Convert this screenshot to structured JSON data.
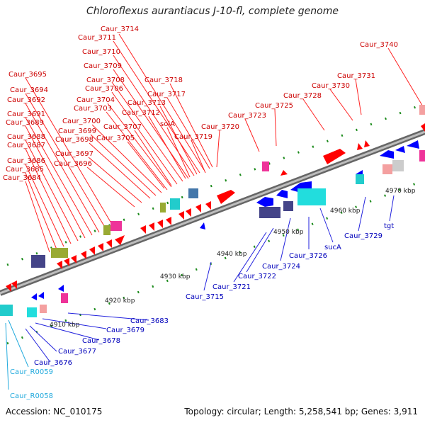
{
  "title": "Chloroflexus aurantiacus J-10-fl, complete genome",
  "footer": {
    "accession": "Accession: NC_010175",
    "topology": "Topology: circular; Length: 5,258,541 bp; Genes: 3,911"
  },
  "colors": {
    "forward_gene": "#ff0000",
    "reverse_gene": "#0000ff",
    "top_label": "#cc0000",
    "bottom_label": "#0000bb",
    "rna_label": "#22aadd",
    "backbone": "#888888"
  },
  "kbp_labels": [
    "4910 kbp",
    "4920 kbp",
    "4930 kbp",
    "4940 kbp",
    "4950 kbp",
    "4960 kbp",
    "4970 kbp"
  ],
  "top_labels": [
    "Caur_3714",
    "Caur_3711",
    "Caur_3710",
    "Caur_3709",
    "Caur_3708",
    "Caur_3706",
    "Caur_3704",
    "Caur_3703",
    "Caur_3700",
    "Caur_3699",
    "Caur_3698",
    "Caur_3697",
    "Caur_3696",
    "Caur_3695",
    "Caur_3694",
    "Caur_3692",
    "Caur_3691",
    "Caur_3689",
    "Caur_3688",
    "Caur_3687",
    "Caur_3686",
    "Caur_3685",
    "Caur_3684",
    "Caur_3718",
    "Caur_3717",
    "Caur_3713",
    "Caur_3712",
    "Caur_3707",
    "Caur_3705",
    "solA",
    "Caur_3719",
    "Caur_3720",
    "Caur_3723",
    "Caur_3725",
    "Caur_3728",
    "Caur_3730",
    "Caur_3731",
    "Caur_3740"
  ],
  "bottom_labels": [
    "Caur_3683",
    "Caur_3679",
    "Caur_3678",
    "Caur_3677",
    "Caur_3676",
    "Caur_3715",
    "Caur_3721",
    "Caur_3722",
    "Caur_3724",
    "Caur_3726",
    "sucA",
    "Caur_3729",
    "tgt"
  ],
  "rna_labels": [
    "Caur_R0059",
    "Caur_R0058"
  ]
}
